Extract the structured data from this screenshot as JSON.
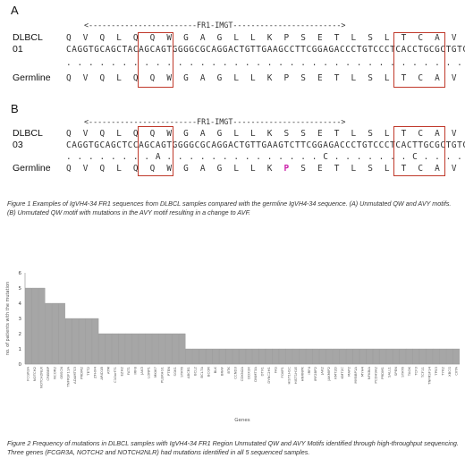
{
  "figure1": {
    "panel_a": {
      "letter": "A",
      "ruler": "<------------------------FR1-IMGT------------------------>",
      "rows": [
        {
          "label": "DLBCL 01",
          "seq": "Q  V  Q  L  Q  Q  W  G  A  G  L  L  K  P  S  E  T  L  S  L  T  C  A  V  Y"
        },
        {
          "label": "",
          "seq": "CAGGTGCAGCTACAGCAGTGGGGCGCAGGACTGTTGAAGCCTTCGGAGACCCTGTCCCTCACCTGCGCTGTCTAT"
        },
        {
          "label": "",
          "seq": ". . . . . . . . . . . . . . . . . . . . . . . . . . . . . . . . . . . . . ."
        },
        {
          "label": "Germline",
          "seq": "Q  V  Q  L  Q  Q  W  G  A  G  L  L  K  P  S  E  T  L  S  L  T  C  A  V  Y"
        }
      ]
    },
    "panel_b": {
      "letter": "B",
      "ruler": "<------------------------FR1-IMGT------------------------>",
      "rows": [
        {
          "label": "DLBCL 03",
          "seq": "Q  V  Q  L  Q  Q  W  G  A  G  L  L  K  S  S  E  T  L  S  L  T  C  A  V  F"
        },
        {
          "label": "",
          "seq": "CAGGTGCAGCTCCAGCAGTGGGGCGCAGGACTGTTGAAGTCTTCGGAGACCCTGTCCCTCACTTGCGCTGTCTTC"
        },
        {
          "label": "",
          "seq": ". . . . . . . . A . . . . . . . . . . . . . . C . . . . . . . C . . . . AT"
        },
        {
          "label": "Germline",
          "seq_parts": [
            "Q  V  Q  L  Q  Q  W  G  A  G  L  L  K  ",
            "P",
            "  S  E  T  L  S  L  T  C  A  V  ",
            "Y"
          ]
        }
      ]
    },
    "caption": "Figure 1 Examples of IgVH4-34 FR1 sequences from DLBCL samples compared with the germline IgVH4-34 sequence. (A) Unmutated QW and AVY motifs. (B) Unmutated QW motif with mutations in the AVY motif resulting in a change to AVF."
  },
  "chart_data": {
    "type": "bar",
    "title": "",
    "xlabel": "Genes",
    "ylabel": "no. of patients with the mutation",
    "ylim": [
      0,
      6
    ],
    "yticks": [
      0,
      1,
      2,
      3,
      4,
      5,
      6
    ],
    "categories": [
      "FCGR3A",
      "NOTCH2",
      "NOTCH2NLR",
      "CREBBP",
      "NCOR2",
      "OBSCN",
      "TNFRSF11A",
      "ADAMTS3",
      "PRDM2",
      "TET2",
      "ZFHX4",
      "ARID1B",
      "ATM",
      "C10orf71",
      "EZH2",
      "FAT1",
      "IRF8",
      "JAK3",
      "LONP1",
      "MKI67",
      "PLEKHG1",
      "PTEN",
      "SGK1",
      "STAT6",
      "ABCB1",
      "BCL2",
      "BCL7A",
      "BCOR",
      "BLK",
      "BRAF",
      "BTK",
      "CCND3",
      "CDKN2A",
      "DDX3X",
      "DNMT3A",
      "DTX1",
      "DYNC2H1",
      "FAS",
      "FOXP1",
      "HIST1H1C",
      "HIST1H1E",
      "HNRNPK",
      "IRF4",
      "IRF2BP2",
      "JAK2",
      "JAKMIP2",
      "KMT2D",
      "KMT2C",
      "MAP2",
      "MYBBP1A",
      "MYH4",
      "NFKBIA",
      "PCDH9A2",
      "PRDM1",
      "SALL1",
      "SPEN",
      "STAT6",
      "TAOK",
      "TCF3",
      "TCF11",
      "TNFRSF14",
      "TP53",
      "TYK2",
      "XBCG",
      "CIITA"
    ],
    "values": [
      5,
      5,
      5,
      4,
      4,
      4,
      3,
      3,
      3,
      3,
      3,
      2,
      2,
      2,
      2,
      2,
      2,
      2,
      2,
      2,
      2,
      2,
      2,
      2,
      1,
      1,
      1,
      1,
      1,
      1,
      1,
      1,
      1,
      1,
      1,
      1,
      1,
      1,
      1,
      1,
      1,
      1,
      1,
      1,
      1,
      1,
      1,
      1,
      1,
      1,
      1,
      1,
      1,
      1,
      1,
      1,
      1,
      1,
      1,
      1,
      1,
      1,
      1,
      1,
      1
    ],
    "bar_color": "#a6a6a6",
    "grid": false
  },
  "figure2": {
    "caption": "Figure 2 Frequency of mutations in DLBCL samples with IgVH4-34 FR1 Region Unmutated QW and AVY Motifs identified through high-throughput sequencing. Three genes (FCGR3A, NOTCH2 and NOTCH2NLR) had mutations identified in all 5 sequenced samples."
  },
  "colors": {
    "highlight_box": "#c0392b",
    "mutation_highlight": "#cc22aa"
  }
}
